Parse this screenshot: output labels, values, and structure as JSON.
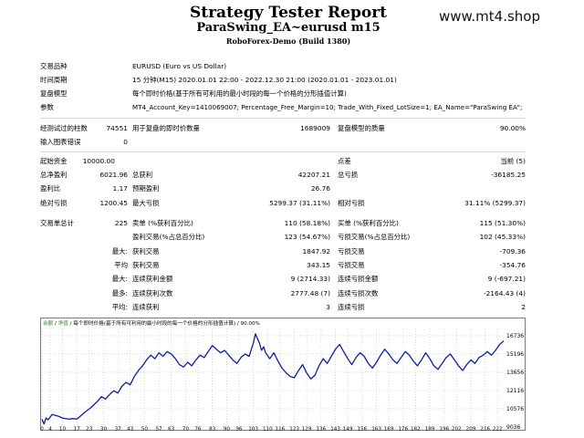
{
  "header": {
    "title": "Strategy Tester Report",
    "subtitle": "ParaSwing_EA~eurusd m15",
    "server": "RoboForex-Demo (Build 1380)",
    "watermark": "www.mt4.shop"
  },
  "info": {
    "symbol_label": "交易品种",
    "symbol_value": "EURUSD (Euro vs US Dollar)",
    "period_label": "时间周期",
    "period_value": "15 分钟(M15) 2020.01.01 22:00 - 2022.12.30 21:00 (2020.01.01 - 2023.01.01)",
    "model_label": "复盘模型",
    "model_value": "每个即时价格(基于所有可利用的最小时段的每一个价格的分形插值计算)",
    "params_label": "参数",
    "params_value": "MT4_Account_Key=1410069007; Percentage_Free_Margin=10; Trade_With_Fixed_LotSize=1; EA_Name=\"ParaSwing EA\";"
  },
  "bars": {
    "bars_label": "经测试过的柱数",
    "bars_value": "74551",
    "ticks_label": "用于复盘的即时价数量",
    "ticks_value": "1689009",
    "quality_label": "复盘模型的质量",
    "quality_value": "90.00%",
    "errors_label": "输入图表错误",
    "errors_value": "0"
  },
  "stats": {
    "deposit_label": "起始资金",
    "deposit_value": "10000.00",
    "spread_label": "点差",
    "spread_value": "当前 (5)",
    "net_label": "总净盈利",
    "net_value": "6021.96",
    "gross_profit_label": "总获利",
    "gross_profit_value": "42207.21",
    "gross_loss_label": "总亏损",
    "gross_loss_value": "-36185.25",
    "pf_label": "盈利比",
    "pf_value": "1.17",
    "payoff_label": "预期盈利",
    "payoff_value": "26.76",
    "abs_dd_label": "绝对亏损",
    "abs_dd_value": "1200.45",
    "max_dd_label": "最大亏损",
    "max_dd_value": "5299.37 (31.11%)",
    "rel_dd_label": "相对亏损",
    "rel_dd_value": "31.11% (5299.37)",
    "trades_label": "交易单总计",
    "trades_value": "225",
    "short_label": "卖单 (%获利百分比)",
    "short_value": "110 (58.18%)",
    "long_label": "买单 (%获利百分比)",
    "long_value": "115 (51.30%)",
    "profit_trades_label": "盈利交易(%占总百分比)",
    "profit_trades_value": "123 (54.67%)",
    "loss_trades_label": "亏损交易(%占总百分比)",
    "loss_trades_value": "102 (45.33%)",
    "largest_label": "最大:",
    "largest_profit_label": "获利交易",
    "largest_profit_value": "1847.92",
    "largest_loss_label": "亏损交易",
    "largest_loss_value": "-709.36",
    "average_label": "平均",
    "average_profit_label": "获利交易",
    "average_profit_value": "343.15",
    "average_loss_label": "亏损交易",
    "average_loss_value": "-354.76",
    "max_label": "最大:",
    "max_cons_wins_label": "连续获利金额",
    "max_cons_wins_value": "9 (2714.33)",
    "max_cons_losses_label": "连续亏损金额",
    "max_cons_losses_value": "9 (-697.21)",
    "most_label": "最多:",
    "most_cons_profit_label": "连续获利次数",
    "most_cons_profit_value": "2777.48 (7)",
    "most_cons_loss_label": "连续亏损次数",
    "most_cons_loss_value": "-2164.43 (4)",
    "avg_label": "平均:",
    "avg_cons_wins_label": "连续获利",
    "avg_cons_wins_value": "3",
    "avg_cons_losses_label": "连续亏损",
    "avg_cons_losses_value": "2"
  },
  "chart_caption": {
    "balance": "余额",
    "separator1": " / ",
    "equity": "净值",
    "rest": " / 每个即时价格(基于所有可利用的最小时段的每一个价格的分形插值计算) / 90.00%"
  },
  "colors": {
    "balance_line": "#0f1fa0",
    "accent_green": "#2a8a2a",
    "grid": "#c0c0c0"
  },
  "chart_data": {
    "type": "line",
    "xlabel": "",
    "ylabel": "",
    "x_ticks": [
      0,
      4,
      10,
      17,
      23,
      30,
      37,
      43,
      50,
      57,
      63,
      70,
      76,
      83,
      90,
      96,
      103,
      110,
      116,
      123,
      129,
      136,
      143,
      149,
      156,
      163,
      169,
      176,
      182,
      189,
      196,
      202,
      209,
      216,
      222
    ],
    "y_ticks": [
      9036,
      10576,
      12116,
      13656,
      15196,
      16736
    ],
    "ylim": [
      9036,
      17350
    ],
    "xlim": [
      0,
      225
    ],
    "grid": true,
    "series": [
      {
        "values": [
          [
            0,
            9700
          ],
          [
            1,
            9300
          ],
          [
            2,
            9800
          ],
          [
            3,
            9650
          ],
          [
            5,
            10100
          ],
          [
            8,
            9950
          ],
          [
            10,
            9800
          ],
          [
            13,
            9700
          ],
          [
            15,
            9750
          ],
          [
            17,
            9700
          ],
          [
            19,
            10000
          ],
          [
            21,
            10300
          ],
          [
            24,
            10700
          ],
          [
            27,
            11200
          ],
          [
            29,
            11600
          ],
          [
            31,
            11400
          ],
          [
            33,
            11800
          ],
          [
            35,
            12100
          ],
          [
            37,
            11900
          ],
          [
            39,
            12500
          ],
          [
            41,
            12800
          ],
          [
            43,
            12600
          ],
          [
            45,
            13300
          ],
          [
            47,
            13800
          ],
          [
            49,
            14200
          ],
          [
            51,
            14700
          ],
          [
            53,
            15100
          ],
          [
            55,
            14800
          ],
          [
            57,
            15300
          ],
          [
            59,
            15000
          ],
          [
            61,
            15400
          ],
          [
            63,
            15200
          ],
          [
            65,
            14800
          ],
          [
            67,
            14300
          ],
          [
            69,
            14100
          ],
          [
            71,
            14500
          ],
          [
            73,
            14200
          ],
          [
            75,
            14700
          ],
          [
            77,
            15100
          ],
          [
            79,
            14900
          ],
          [
            81,
            15400
          ],
          [
            83,
            15900
          ],
          [
            85,
            15600
          ],
          [
            87,
            15300
          ],
          [
            89,
            15500
          ],
          [
            91,
            15100
          ],
          [
            93,
            14700
          ],
          [
            95,
            14400
          ],
          [
            97,
            14900
          ],
          [
            99,
            15200
          ],
          [
            101,
            15000
          ],
          [
            102,
            15600
          ],
          [
            103,
            16100
          ],
          [
            104,
            16900
          ],
          [
            105,
            16500
          ],
          [
            106,
            16100
          ],
          [
            107,
            15500
          ],
          [
            108,
            15800
          ],
          [
            109,
            15300
          ],
          [
            111,
            14800
          ],
          [
            113,
            15300
          ],
          [
            115,
            14600
          ],
          [
            117,
            14000
          ],
          [
            119,
            13600
          ],
          [
            121,
            13300
          ],
          [
            123,
            13200
          ],
          [
            125,
            13800
          ],
          [
            127,
            14300
          ],
          [
            129,
            13600
          ],
          [
            131,
            13100
          ],
          [
            133,
            13400
          ],
          [
            135,
            14200
          ],
          [
            137,
            14800
          ],
          [
            139,
            14400
          ],
          [
            141,
            15000
          ],
          [
            143,
            15600
          ],
          [
            145,
            16000
          ],
          [
            147,
            15400
          ],
          [
            149,
            14800
          ],
          [
            151,
            14300
          ],
          [
            153,
            14900
          ],
          [
            155,
            15300
          ],
          [
            157,
            15000
          ],
          [
            159,
            14400
          ],
          [
            161,
            14000
          ],
          [
            163,
            14500
          ],
          [
            165,
            15100
          ],
          [
            167,
            15600
          ],
          [
            169,
            15200
          ],
          [
            171,
            14700
          ],
          [
            173,
            14400
          ],
          [
            175,
            14900
          ],
          [
            177,
            15400
          ],
          [
            179,
            15100
          ],
          [
            181,
            14600
          ],
          [
            183,
            14200
          ],
          [
            185,
            14700
          ],
          [
            187,
            15300
          ],
          [
            189,
            14800
          ],
          [
            191,
            14200
          ],
          [
            193,
            13900
          ],
          [
            195,
            14400
          ],
          [
            197,
            14900
          ],
          [
            199,
            15200
          ],
          [
            201,
            14700
          ],
          [
            203,
            14200
          ],
          [
            205,
            13800
          ],
          [
            207,
            14300
          ],
          [
            209,
            14700
          ],
          [
            211,
            14400
          ],
          [
            213,
            14900
          ],
          [
            215,
            15100
          ],
          [
            217,
            15400
          ],
          [
            219,
            15100
          ],
          [
            221,
            15500
          ],
          [
            223,
            16000
          ],
          [
            225,
            16300
          ]
        ]
      }
    ]
  }
}
